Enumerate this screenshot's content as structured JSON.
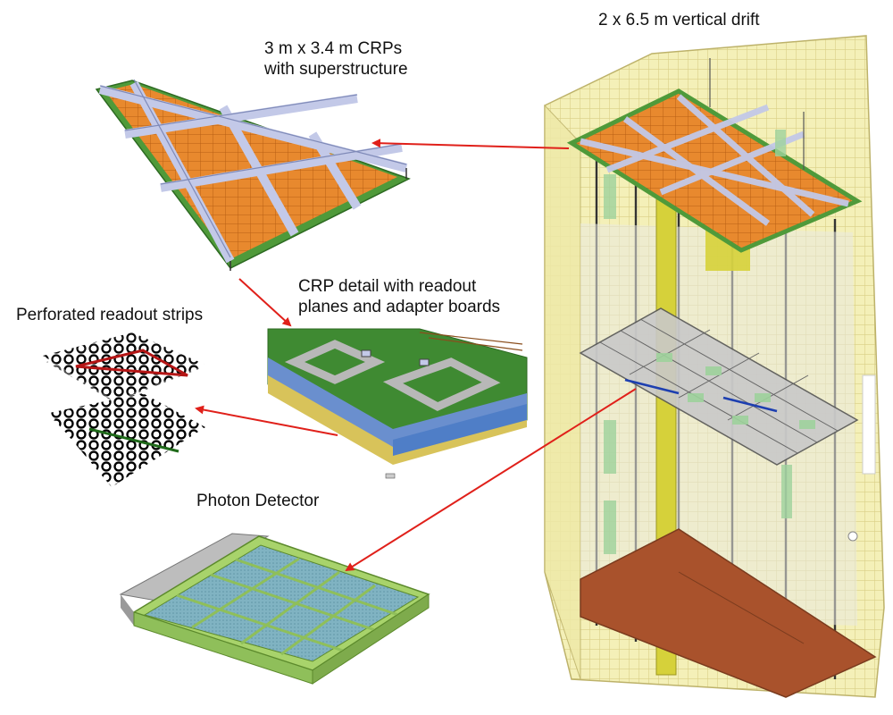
{
  "labels": {
    "vertical_drift": "2 x 6.5 m  vertical drift",
    "crps_line1": "3 m x 3.4 m  CRPs",
    "crps_line2": "with superstructure",
    "crp_detail_line1": "CRP detail with readout",
    "crp_detail_line2": "planes and adapter boards",
    "perforated_strips": "Perforated readout strips",
    "photon_detector": "Photon Detector"
  },
  "colors": {
    "arrow": "#e0201a",
    "cryostat_wall": "#f4f0b8",
    "cryostat_grid": "#d9cf86",
    "crp_frame": "#b8bfe0",
    "crp_orange": "#e8892e",
    "crp_green": "#4f9a3a",
    "floor": "#a9522c",
    "pd_blue": "#7fb2c0",
    "pd_frame": "#a8d36b"
  }
}
